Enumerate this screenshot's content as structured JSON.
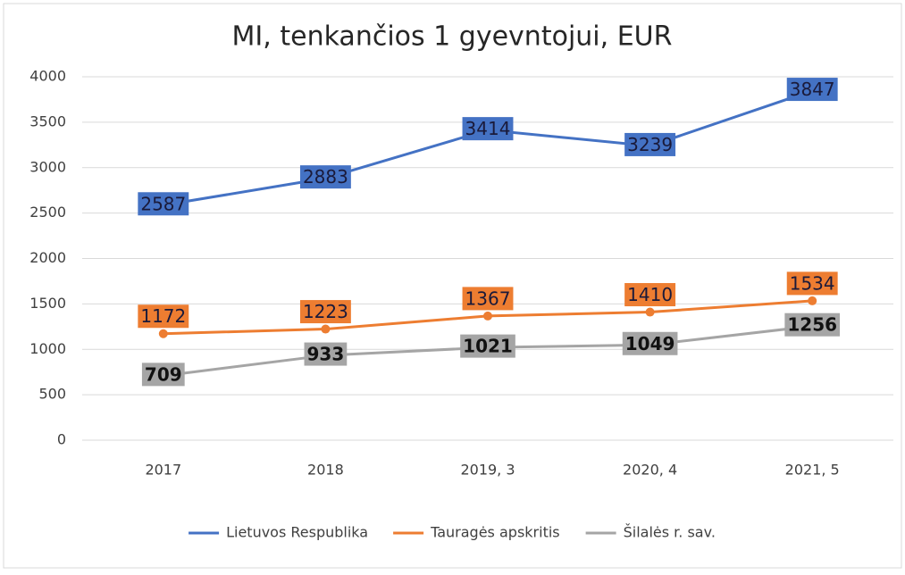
{
  "chart_data": {
    "type": "line",
    "title": "MI, tenkančios 1 gyevntojui, EUR",
    "categories": [
      "2017",
      "2018",
      "2019, 3",
      "2020, 4",
      "2021, 5"
    ],
    "series": [
      {
        "name": "Lietuvos Respublika",
        "color": "#4472c4",
        "values": [
          2587,
          2883,
          3414,
          3239,
          3847
        ]
      },
      {
        "name": "Tauragės apskritis",
        "color": "#ed7d31",
        "values": [
          1172,
          1223,
          1367,
          1410,
          1534
        ]
      },
      {
        "name": "Šilalės r. sav.",
        "color": "#a5a5a5",
        "values": [
          709,
          933,
          1021,
          1049,
          1256
        ]
      }
    ],
    "ylim": [
      0,
      4000
    ],
    "yticks": [
      0,
      500,
      1000,
      1500,
      2000,
      2500,
      3000,
      3500,
      4000
    ],
    "grid": true,
    "legend": "bottom"
  }
}
